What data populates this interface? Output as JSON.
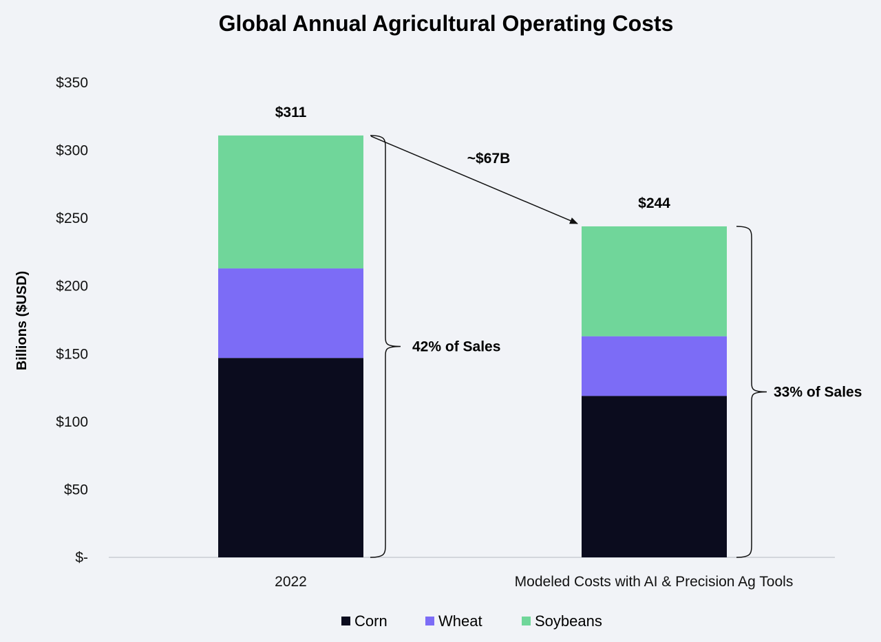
{
  "colors": {
    "Corn": "#0b0c1e",
    "Wheat": "#7c6cf6",
    "Soybeans": "#70d69a",
    "background": "#f1f3f7"
  },
  "chart_data": {
    "type": "bar",
    "stacked": true,
    "title": "Global Annual Agricultural Operating Costs",
    "ylabel": "Billions ($USD)",
    "xlabel": "",
    "ylim": [
      0,
      350
    ],
    "yticks": [
      0,
      50,
      100,
      150,
      200,
      250,
      300,
      350
    ],
    "ytick_labels": [
      "$-",
      "$50",
      "$100",
      "$150",
      "$200",
      "$250",
      "$300",
      "$350"
    ],
    "categories": [
      "2022",
      "Modeled Costs with AI & Precision Ag Tools"
    ],
    "series": [
      {
        "name": "Corn",
        "values": [
          147,
          119
        ]
      },
      {
        "name": "Wheat",
        "values": [
          66,
          44
        ]
      },
      {
        "name": "Soybeans",
        "values": [
          98,
          81
        ]
      }
    ],
    "totals": [
      "$311",
      "$244"
    ],
    "total_values": [
      311,
      244
    ],
    "annotations": {
      "difference": "~$67B",
      "share_labels": [
        "42% of Sales",
        "33% of Sales"
      ]
    },
    "legend": {
      "position": "bottom",
      "entries": [
        "Corn",
        "Wheat",
        "Soybeans"
      ]
    },
    "grid": false
  }
}
